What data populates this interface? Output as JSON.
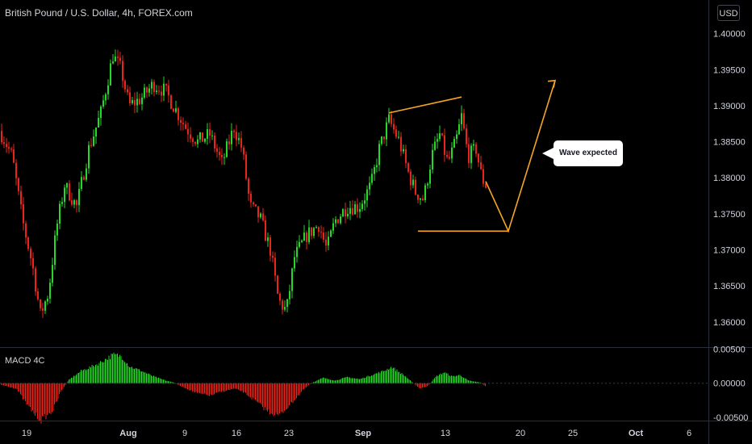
{
  "header": {
    "title": "British Pound / U.S. Dollar, 4h, FOREX.com",
    "currency": "USD"
  },
  "indicator": {
    "name": "MACD 4C"
  },
  "annotation": {
    "text": "Wave expected"
  },
  "colors": {
    "up": "#26d926",
    "down": "#e8251a",
    "drawing": "#f5a623",
    "axis_text": "#d1d4dc",
    "background": "#000000"
  },
  "chart_data": [
    {
      "type": "line",
      "title": "British Pound / U.S. Dollar, 4h, FOREX.com",
      "xlabel": "",
      "ylabel": "",
      "x_ticks": [
        "19",
        "Aug",
        "9",
        "16",
        "23",
        "Sep",
        "13",
        "20",
        "25",
        "Oct",
        "6"
      ],
      "y_ticks": [
        "1.40000",
        "1.39500",
        "1.39000",
        "1.38500",
        "1.38000",
        "1.37500",
        "1.37000",
        "1.36500",
        "1.36000"
      ],
      "ylim": [
        1.3565,
        1.4022
      ],
      "price_path": [
        [
          0,
          1.3865
        ],
        [
          15,
          1.383
        ],
        [
          28,
          1.374
        ],
        [
          40,
          1.368
        ],
        [
          50,
          1.361
        ],
        [
          60,
          1.364
        ],
        [
          70,
          1.373
        ],
        [
          80,
          1.379
        ],
        [
          95,
          1.376
        ],
        [
          110,
          1.384
        ],
        [
          125,
          1.389
        ],
        [
          140,
          1.397
        ],
        [
          150,
          1.395
        ],
        [
          160,
          1.39
        ],
        [
          175,
          1.391
        ],
        [
          190,
          1.393
        ],
        [
          205,
          1.392
        ],
        [
          215,
          1.39
        ],
        [
          230,
          1.387
        ],
        [
          245,
          1.385
        ],
        [
          260,
          1.386
        ],
        [
          275,
          1.382
        ],
        [
          290,
          1.387
        ],
        [
          300,
          1.384
        ],
        [
          310,
          1.376
        ],
        [
          322,
          1.3745
        ],
        [
          335,
          1.37
        ],
        [
          345,
          1.363
        ],
        [
          355,
          1.3615
        ],
        [
          365,
          1.369
        ],
        [
          380,
          1.372
        ],
        [
          395,
          1.3735
        ],
        [
          405,
          1.37
        ],
        [
          415,
          1.374
        ],
        [
          430,
          1.376
        ],
        [
          445,
          1.376
        ],
        [
          460,
          1.379
        ],
        [
          470,
          1.384
        ],
        [
          482,
          1.388
        ],
        [
          495,
          1.385
        ],
        [
          505,
          1.381
        ],
        [
          515,
          1.378
        ],
        [
          525,
          1.377
        ],
        [
          535,
          1.383
        ],
        [
          545,
          1.386
        ],
        [
          555,
          1.382
        ],
        [
          565,
          1.385
        ],
        [
          572,
          1.3885
        ],
        [
          580,
          1.383
        ],
        [
          590,
          1.384
        ],
        [
          597,
          1.38
        ],
        [
          602,
          1.379
        ]
      ]
    },
    {
      "type": "bar",
      "title": "MACD 4C",
      "y_ticks": [
        "0.00500",
        "0.00000",
        "-0.00500"
      ],
      "ylim": [
        -0.0055,
        0.0052
      ],
      "hist_points": [
        [
          0,
          -0.0002
        ],
        [
          20,
          -0.0008
        ],
        [
          35,
          -0.0035
        ],
        [
          50,
          -0.0055
        ],
        [
          65,
          -0.004
        ],
        [
          75,
          -0.0012
        ],
        [
          85,
          0.0005
        ],
        [
          100,
          0.0018
        ],
        [
          120,
          0.0028
        ],
        [
          140,
          0.0042
        ],
        [
          150,
          0.004
        ],
        [
          160,
          0.0025
        ],
        [
          175,
          0.0018
        ],
        [
          190,
          0.001
        ],
        [
          205,
          0.0004
        ],
        [
          215,
          0.0001
        ],
        [
          225,
          -0.0005
        ],
        [
          245,
          -0.0015
        ],
        [
          260,
          -0.0018
        ],
        [
          275,
          -0.0012
        ],
        [
          290,
          -0.0008
        ],
        [
          300,
          -0.0012
        ],
        [
          315,
          -0.0025
        ],
        [
          330,
          -0.004
        ],
        [
          345,
          -0.0048
        ],
        [
          360,
          -0.003
        ],
        [
          375,
          -0.001
        ],
        [
          385,
          0.0
        ],
        [
          400,
          0.0008
        ],
        [
          415,
          0.0004
        ],
        [
          430,
          0.0009
        ],
        [
          445,
          0.0006
        ],
        [
          460,
          0.0012
        ],
        [
          475,
          0.0018
        ],
        [
          485,
          0.0024
        ],
        [
          500,
          0.0012
        ],
        [
          512,
          0.0
        ],
        [
          520,
          -0.0008
        ],
        [
          530,
          -0.0004
        ],
        [
          540,
          0.001
        ],
        [
          550,
          0.0016
        ],
        [
          560,
          0.001
        ],
        [
          570,
          0.0012
        ],
        [
          580,
          0.0004
        ],
        [
          595,
          0.0001
        ],
        [
          602,
          -0.0005
        ]
      ]
    }
  ],
  "drawing_points": {
    "upper_line": [
      [
        482,
        1.389
      ],
      [
        572,
        1.3912
      ]
    ],
    "lower_line": [
      [
        518,
        1.3726
      ],
      [
        630,
        1.3726
      ]
    ],
    "projection": [
      [
        602,
        1.3795
      ],
      [
        630,
        1.3726
      ],
      [
        688,
        1.3935
      ]
    ]
  }
}
